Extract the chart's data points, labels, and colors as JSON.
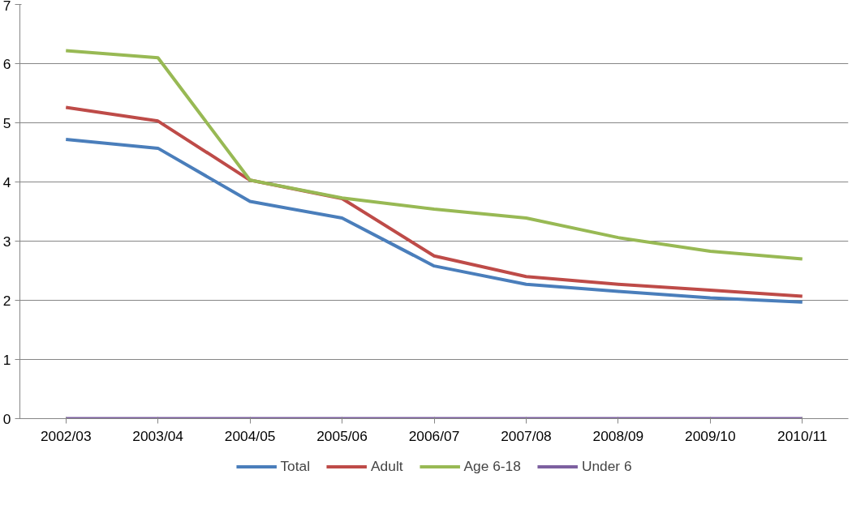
{
  "chart_data": {
    "type": "line",
    "categories": [
      "2002/03",
      "2003/04",
      "2004/05",
      "2005/06",
      "2006/07",
      "2007/08",
      "2008/09",
      "2009/10",
      "2010/11"
    ],
    "series": [
      {
        "name": "Total",
        "color": "#4a7ebb",
        "values": [
          4.72,
          4.57,
          3.67,
          3.39,
          2.58,
          2.27,
          2.15,
          2.04,
          1.97
        ]
      },
      {
        "name": "Adult",
        "color": "#be4b48",
        "values": [
          5.26,
          5.03,
          4.03,
          3.72,
          2.75,
          2.4,
          2.27,
          2.17,
          2.07
        ]
      },
      {
        "name": "Age 6-18",
        "color": "#98b954",
        "values": [
          6.22,
          6.1,
          4.03,
          3.73,
          3.54,
          3.39,
          3.06,
          2.83,
          2.7
        ]
      },
      {
        "name": "Under 6",
        "color": "#7d60a0",
        "values": [
          0,
          0,
          0,
          0,
          0,
          0,
          0,
          0,
          0
        ]
      }
    ],
    "ylim": [
      0,
      7
    ],
    "yticks": [
      0,
      1,
      2,
      3,
      4,
      5,
      6,
      7
    ],
    "grid": "y",
    "legend": "bottom",
    "line_style": "solid",
    "marker": "none"
  }
}
